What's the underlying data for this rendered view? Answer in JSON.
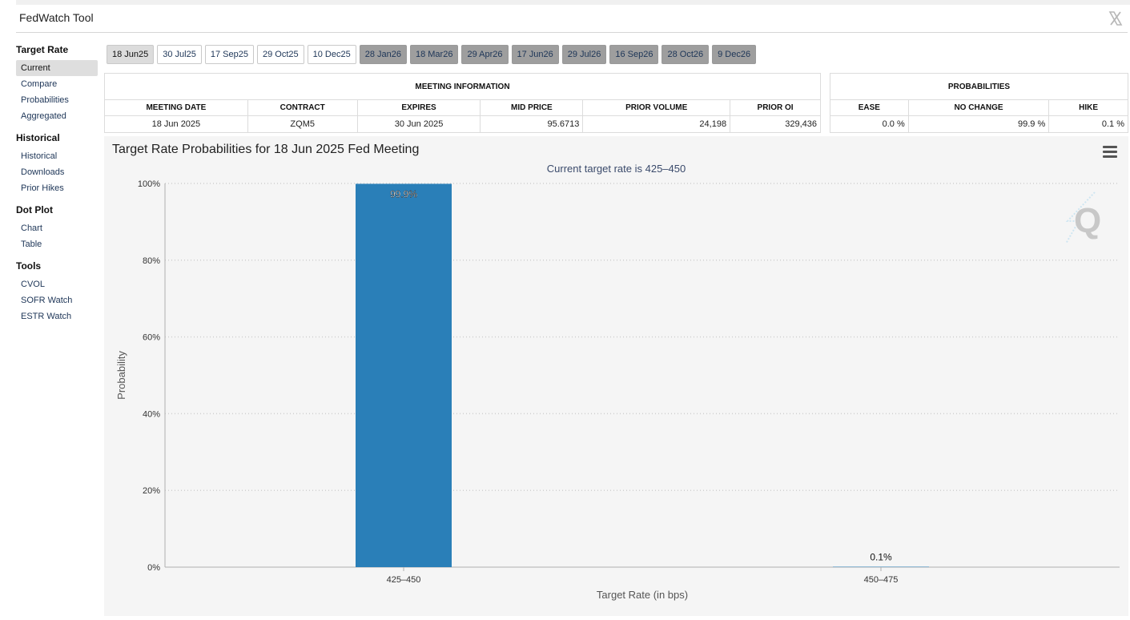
{
  "app": {
    "title": "FedWatch Tool",
    "x_icon": "x-logo-icon"
  },
  "sidebar": {
    "sections": [
      {
        "heading": "Target Rate",
        "items": [
          "Current",
          "Compare",
          "Probabilities",
          "Aggregated"
        ]
      },
      {
        "heading": "Historical",
        "items": [
          "Historical",
          "Downloads",
          "Prior Hikes"
        ]
      },
      {
        "heading": "Dot Plot",
        "items": [
          "Chart",
          "Table"
        ]
      },
      {
        "heading": "Tools",
        "items": [
          "CVOL",
          "SOFR Watch",
          "ESTR Watch"
        ]
      }
    ],
    "active_item": "Current"
  },
  "tabs": [
    "18 Jun25",
    "30 Jul25",
    "17 Sep25",
    "29 Oct25",
    "10 Dec25",
    "28 Jan26",
    "18 Mar26",
    "29 Apr26",
    "17 Jun26",
    "29 Jul26",
    "16 Sep26",
    "28 Oct26",
    "9 Dec26"
  ],
  "tabs_selected": "18 Jun25",
  "tabs_future_from": "28 Jan26",
  "meeting_info": {
    "caption": "MEETING INFORMATION",
    "headers": {
      "date": "MEETING DATE",
      "contract": "CONTRACT",
      "expires": "EXPIRES",
      "mid": "MID PRICE",
      "volume": "PRIOR VOLUME",
      "oi": "PRIOR OI"
    },
    "row": {
      "date": "18 Jun 2025",
      "contract": "ZQM5",
      "expires": "30 Jun 2025",
      "mid": "95.6713",
      "volume": "24,198",
      "oi": "329,436"
    }
  },
  "probabilities": {
    "caption": "PROBABILITIES",
    "headers": {
      "ease": "EASE",
      "no_change": "NO CHANGE",
      "hike": "HIKE"
    },
    "row": {
      "ease": "0.0 %",
      "no_change": "99.9 %",
      "hike": "0.1 %"
    }
  },
  "chart": {
    "title": "Target Rate Probabilities for 18 Jun 2025 Fed Meeting",
    "subtitle": "Current target rate is 425–450",
    "menu_icon": "hamburger-menu-icon",
    "watermark_icon": "q-logo-icon",
    "bar_color": "#2a7fb8"
  },
  "chart_data": {
    "type": "bar",
    "categories": [
      "425–450",
      "450–475"
    ],
    "values": [
      99.9,
      0.1
    ],
    "data_labels": [
      "99.9%",
      "0.1%"
    ],
    "xlabel": "Target Rate (in bps)",
    "ylabel": "Probability",
    "ylim": [
      0,
      100
    ],
    "yticks": [
      "0%",
      "20%",
      "40%",
      "60%",
      "80%",
      "100%"
    ],
    "grid": true
  }
}
